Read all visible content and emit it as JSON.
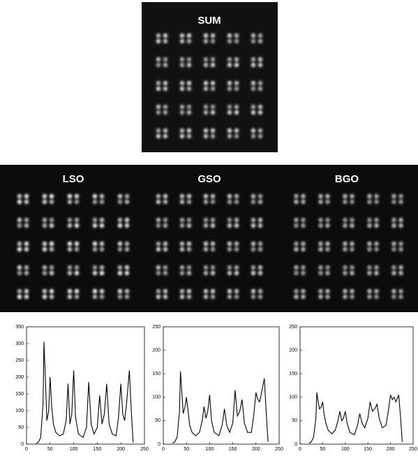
{
  "images": [
    "SUM",
    "LSO",
    "GSO",
    "BGO"
  ],
  "chart_data": [
    {
      "type": "line",
      "color": "#000",
      "x": [
        20,
        25,
        30,
        35,
        37,
        40,
        43,
        47,
        50,
        53,
        57,
        62,
        70,
        78,
        84,
        88,
        92,
        96,
        100,
        104,
        110,
        120,
        127,
        132,
        137,
        143,
        150,
        155,
        160,
        165,
        170,
        175,
        182,
        190,
        195,
        200,
        204,
        208,
        212,
        218,
        222,
        226
      ],
      "values": [
        2,
        5,
        20,
        120,
        305,
        200,
        70,
        100,
        200,
        120,
        60,
        35,
        25,
        30,
        70,
        180,
        60,
        90,
        220,
        80,
        30,
        20,
        50,
        185,
        60,
        30,
        50,
        145,
        60,
        90,
        180,
        60,
        30,
        25,
        80,
        180,
        90,
        70,
        120,
        220,
        100,
        5
      ],
      "xlim": [
        0,
        250
      ],
      "xticks": [
        0,
        50,
        100,
        150,
        200,
        250
      ],
      "ylim": [
        0,
        350
      ],
      "yticks": [
        0,
        50,
        100,
        150,
        200,
        250,
        300,
        350
      ]
    },
    {
      "type": "line",
      "color": "#000",
      "x": [
        20,
        25,
        30,
        35,
        37,
        40,
        43,
        47,
        50,
        53,
        57,
        62,
        70,
        78,
        84,
        88,
        92,
        96,
        100,
        104,
        110,
        120,
        127,
        132,
        137,
        143,
        150,
        155,
        160,
        165,
        170,
        175,
        182,
        190,
        195,
        200,
        204,
        208,
        212,
        218,
        222,
        226
      ],
      "values": [
        2,
        5,
        15,
        70,
        155,
        110,
        65,
        80,
        100,
        75,
        40,
        25,
        18,
        25,
        50,
        80,
        55,
        70,
        105,
        50,
        25,
        18,
        40,
        75,
        40,
        25,
        45,
        115,
        60,
        70,
        95,
        45,
        25,
        25,
        60,
        110,
        95,
        90,
        110,
        140,
        70,
        5
      ],
      "xlim": [
        0,
        250
      ],
      "xticks": [
        0,
        50,
        100,
        150,
        200,
        250
      ],
      "ylim": [
        0,
        250
      ],
      "yticks": [
        0,
        50,
        100,
        150,
        200,
        250
      ]
    },
    {
      "type": "line",
      "color": "#000",
      "x": [
        20,
        25,
        30,
        35,
        37,
        40,
        43,
        47,
        50,
        53,
        57,
        62,
        70,
        78,
        84,
        88,
        92,
        96,
        100,
        104,
        110,
        120,
        127,
        132,
        137,
        143,
        150,
        155,
        160,
        165,
        170,
        175,
        182,
        190,
        195,
        200,
        204,
        208,
        212,
        218,
        222,
        226
      ],
      "values": [
        2,
        5,
        15,
        55,
        110,
        90,
        75,
        80,
        90,
        65,
        45,
        30,
        22,
        30,
        50,
        70,
        50,
        55,
        70,
        45,
        25,
        20,
        40,
        65,
        45,
        35,
        55,
        90,
        70,
        75,
        85,
        55,
        35,
        40,
        70,
        105,
        95,
        100,
        90,
        105,
        60,
        5
      ],
      "xlim": [
        0,
        250
      ],
      "xticks": [
        0,
        50,
        100,
        150,
        200,
        250
      ],
      "ylim": [
        0,
        250
      ],
      "yticks": [
        0,
        50,
        100,
        150,
        200,
        250
      ]
    }
  ]
}
